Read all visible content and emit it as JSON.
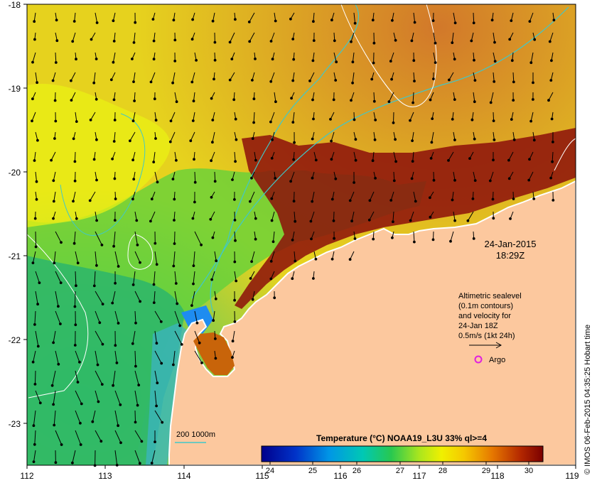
{
  "map": {
    "lon_ticks": [
      "112",
      "113",
      "114",
      "115",
      "116",
      "117",
      "118",
      "119"
    ],
    "lat_ticks": [
      "-18",
      "-19",
      "-20",
      "-21",
      "-22",
      "-23"
    ],
    "timestamp": {
      "date": "24-Jan-2015",
      "time": "18:29Z"
    },
    "legend_note": [
      "Altimetric sealevel",
      "(0.1m contours)",
      "and velocity for",
      "24-Jan 18Z",
      "0.5m/s (1kt 24h)"
    ],
    "argo_label": "Argo",
    "depth_legend": "200  1000m",
    "colorbar": {
      "title": "Temperature (°C) NOAA19_L3U 33% ql>=4",
      "ticks": [
        "24",
        "25",
        "26",
        "27",
        "28",
        "29",
        "30"
      ]
    },
    "credit": "© IMOS 06-Feb-2015 04:35:25 Hobart time"
  },
  "colors": {
    "land": "#fcc89e",
    "argo_marker": "#e020e0",
    "isobath": "#40c8c8",
    "sea_level_contour": "#ffffff"
  }
}
